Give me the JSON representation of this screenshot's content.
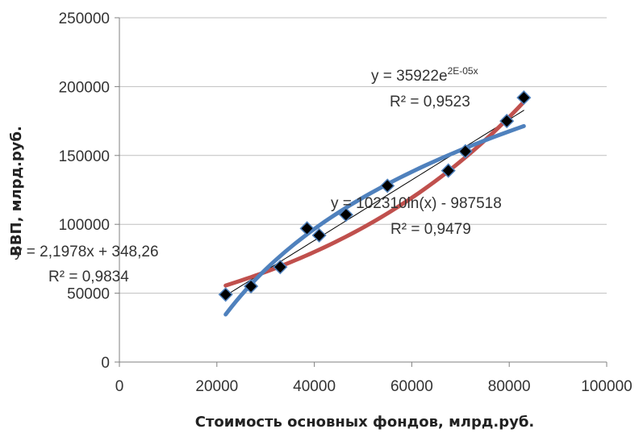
{
  "chart_data": {
    "type": "scatter",
    "title": "",
    "xlabel": "Стоимость основных фондов, млрд.руб.",
    "ylabel": "ВВП, млрд.руб.",
    "xlim": [
      0,
      100000
    ],
    "ylim": [
      0,
      250000
    ],
    "x_ticks": [
      "0",
      "20000",
      "40000",
      "60000",
      "80000",
      "100000"
    ],
    "y_ticks": [
      "0",
      "50000",
      "100000",
      "150000",
      "200000",
      "250000"
    ],
    "grid": "horizontal major gridlines",
    "legend": "none",
    "points": [
      {
        "x": 21800,
        "y": 49000
      },
      {
        "x": 27000,
        "y": 55000
      },
      {
        "x": 33000,
        "y": 69000
      },
      {
        "x": 38500,
        "y": 97000
      },
      {
        "x": 41000,
        "y": 92000
      },
      {
        "x": 46500,
        "y": 107000
      },
      {
        "x": 55000,
        "y": 128000
      },
      {
        "x": 67500,
        "y": 139000
      },
      {
        "x": 71000,
        "y": 153000
      },
      {
        "x": 79500,
        "y": 175000
      },
      {
        "x": 83000,
        "y": 192000
      }
    ],
    "trendlines": [
      {
        "kind": "linear",
        "equation": "y = 2,1978x + 348,26",
        "r2": "R² = 0,9834",
        "slope": 2.1978,
        "intercept": 348.26,
        "color": "#000000"
      },
      {
        "kind": "exponential",
        "equation_base": "y = 35922e",
        "equation_exp": "2E-05x",
        "r2": "R² = 0,9523",
        "a": 35922,
        "b": 2e-05,
        "color": "#c0504d"
      },
      {
        "kind": "logarithmic",
        "equation": "y = 102310ln(x) - 987518",
        "r2": "R² = 0,9479",
        "a": 102310,
        "b": -987518,
        "color": "#4f81bd"
      }
    ],
    "marker_color": "#000000",
    "marker_edge": "#4f81bd"
  }
}
